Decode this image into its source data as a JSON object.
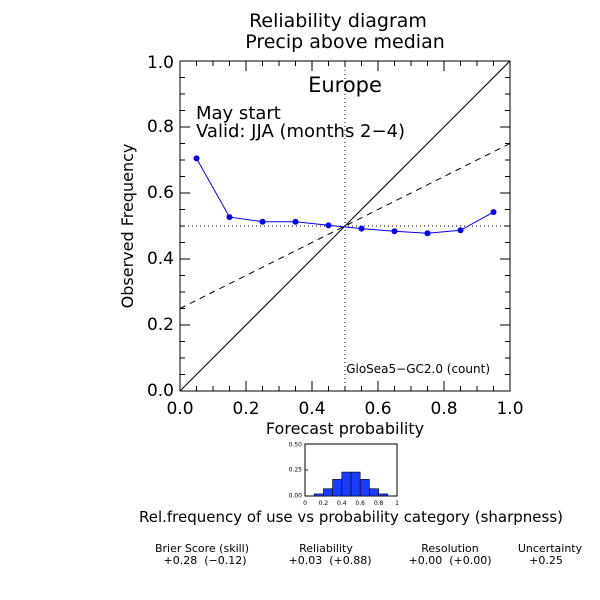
{
  "title_line1": "Reliability diagram",
  "title_line2": "Precip above median",
  "region": "Europe",
  "start_label": "May start",
  "valid_label": "Valid: JJA (months 2−4)",
  "model_label": "GloSea5−GC2.0 (count)",
  "colors": {
    "curve": "#0000ee",
    "bars": "#1a3cff",
    "axis": "#000000"
  },
  "chart_data": [
    {
      "type": "line",
      "xlabel": "Forecast probability",
      "ylabel": "Observed Frequency",
      "xlim": [
        0.0,
        1.0
      ],
      "ylim": [
        0.0,
        1.0
      ],
      "xticks": [
        "0.0",
        "0.2",
        "0.4",
        "0.6",
        "0.8",
        "1.0"
      ],
      "yticks": [
        "0.0",
        "0.2",
        "0.4",
        "0.6",
        "0.8",
        "1.0"
      ],
      "climatology": 0.5,
      "reference_lines": [
        "perfect reliability (y = x)",
        "no-skill line (dashed)",
        "climatology (dotted)"
      ],
      "no_skill": {
        "x": [
          0.0,
          1.0
        ],
        "y": [
          0.25,
          0.75
        ]
      },
      "series": [
        {
          "x": [
            0.05,
            0.15,
            0.25,
            0.35,
            0.45,
            0.55,
            0.65,
            0.75,
            0.85,
            0.95
          ],
          "y": [
            0.705,
            0.527,
            0.513,
            0.513,
            0.502,
            0.492,
            0.484,
            0.478,
            0.487,
            0.542
          ]
        }
      ]
    },
    {
      "type": "bar",
      "caption": "Rel.frequency of use vs probability category (sharpness)",
      "xticks": [
        "0",
        "0.2",
        "0.4",
        "0.6",
        "0.8",
        "1"
      ],
      "yticks": [
        "0.00",
        "0.25",
        "0.50"
      ],
      "ylim": [
        0.0,
        0.5
      ],
      "bin_centers": [
        0.05,
        0.15,
        0.25,
        0.35,
        0.45,
        0.55,
        0.65,
        0.75,
        0.85,
        0.95
      ],
      "values": [
        0.0,
        0.02,
        0.07,
        0.16,
        0.23,
        0.23,
        0.16,
        0.07,
        0.02,
        0.0
      ]
    }
  ],
  "scores": [
    {
      "label": "Brier Score (skill)",
      "value": "+0.28  (−0.12)"
    },
    {
      "label": "Reliability",
      "value": "+0.03  (+0.88)"
    },
    {
      "label": "Resolution",
      "value": "+0.00  (+0.00)"
    },
    {
      "label": "Uncertainty",
      "value": "+0.25"
    }
  ]
}
